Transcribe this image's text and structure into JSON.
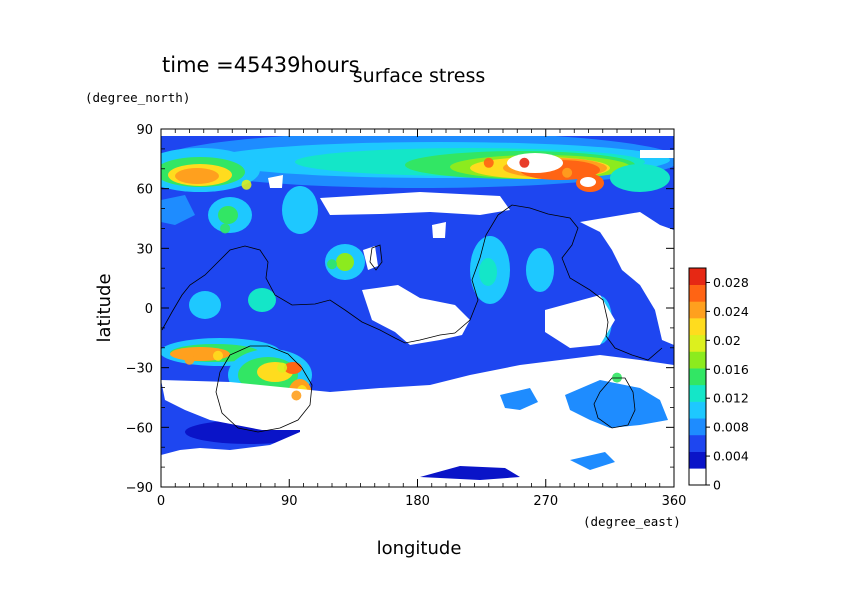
{
  "header": {
    "time_label": "time =45439hours",
    "title": "surface stress"
  },
  "chart_data": {
    "type": "heatmap",
    "title": "surface stress",
    "subtitle": "time =45439hours",
    "xlabel": "longitude",
    "xunit": "(degree_east)",
    "ylabel": "latitude",
    "yunit": "(degree_north)",
    "xlim": [
      0,
      360
    ],
    "ylim": [
      -90,
      90
    ],
    "x_ticks": [
      "0",
      "90",
      "180",
      "270",
      "360"
    ],
    "y_ticks": [
      "90",
      "60",
      "30",
      "0",
      "−30",
      "−60",
      "−90"
    ],
    "colorbar": {
      "min": 0,
      "max": 0.03,
      "tick_labels": [
        "0.028",
        "0.024",
        "0.02",
        "0.016",
        "0.012",
        "0.008",
        "0.004",
        "0"
      ],
      "colors": [
        "#ffffff",
        "#0a14c8",
        "#1e46f0",
        "#1e8cff",
        "#1ec8ff",
        "#14e6c8",
        "#32e664",
        "#8ceb1e",
        "#dcf01e",
        "#ffdc1e",
        "#ffa01e",
        "#ff6414",
        "#e62814"
      ]
    },
    "features": [
      {
        "lon": 25,
        "lat": 66,
        "value": 0.024
      },
      {
        "lon": 60,
        "lat": 62,
        "value": 0.02
      },
      {
        "lon": 230,
        "lat": 73,
        "value": 0.028
      },
      {
        "lon": 255,
        "lat": 73,
        "value": 0.03
      },
      {
        "lon": 285,
        "lat": 68,
        "value": 0.026
      },
      {
        "lon": 20,
        "lat": -26,
        "value": 0.026
      },
      {
        "lon": 40,
        "lat": -24,
        "value": 0.022
      },
      {
        "lon": 95,
        "lat": -44,
        "value": 0.024
      },
      {
        "lon": 85,
        "lat": -30,
        "value": 0.02
      },
      {
        "lon": 120,
        "lat": 22,
        "value": 0.016
      },
      {
        "lon": 45,
        "lat": 40,
        "value": 0.014
      },
      {
        "lon": 320,
        "lat": -35,
        "value": 0.016
      }
    ]
  }
}
